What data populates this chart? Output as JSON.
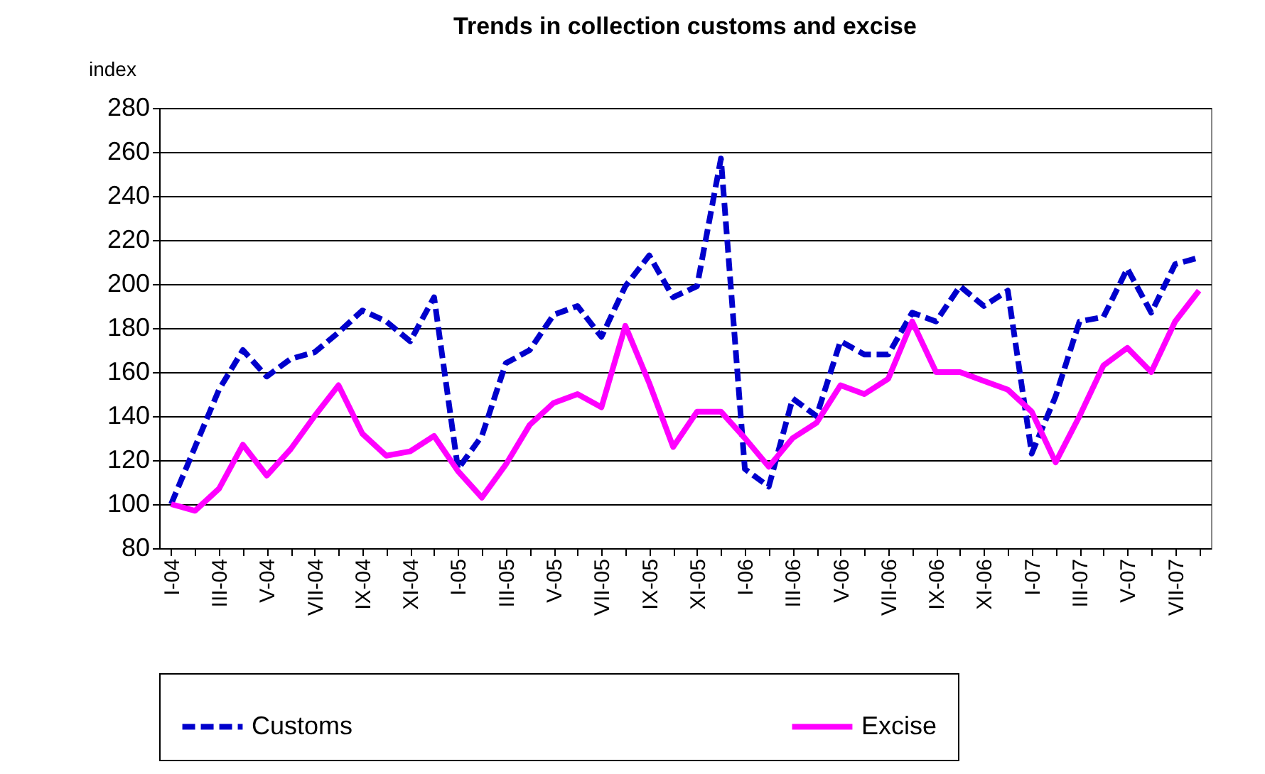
{
  "chart_data": {
    "type": "line",
    "title": "Trends in collection customs and excise",
    "ylabel": "index",
    "categories": [
      "I-04",
      null,
      "III-04",
      null,
      "V-04",
      null,
      "VII-04",
      null,
      "IX-04",
      null,
      "XI-04",
      null,
      "I-05",
      null,
      "III-05",
      null,
      "V-05",
      null,
      "VII-05",
      null,
      "IX-05",
      null,
      "XI-05",
      null,
      "I-06",
      null,
      "III-06",
      null,
      "V-06",
      null,
      "VII-06",
      null,
      "IX-06",
      null,
      "XI-06",
      null,
      "I-07",
      null,
      "III-07",
      null,
      "V-07",
      null,
      "VII-07",
      null
    ],
    "series": [
      {
        "name": "Customs",
        "color": "#0000cc",
        "line_style": "dashed",
        "values": [
          100,
          126,
          152,
          170,
          158,
          166,
          169,
          178,
          188,
          183,
          174,
          194,
          116,
          131,
          164,
          170,
          186,
          190,
          176,
          199,
          213,
          194,
          199,
          257,
          116,
          108,
          148,
          140,
          174,
          168,
          168,
          187,
          183,
          199,
          190,
          197,
          123,
          149,
          183,
          185,
          207,
          187,
          209,
          212
        ]
      },
      {
        "name": "Excise",
        "color": "#ff00ff",
        "line_style": "solid",
        "values": [
          100,
          97,
          107,
          127,
          113,
          125,
          140,
          154,
          132,
          122,
          124,
          131,
          115,
          103,
          118,
          136,
          146,
          150,
          144,
          181,
          155,
          126,
          142,
          142,
          130,
          117,
          130,
          137,
          154,
          150,
          157,
          183,
          160,
          160,
          156,
          152,
          142,
          119,
          140,
          163,
          171,
          160,
          183,
          197
        ]
      }
    ],
    "ylim": [
      80,
      280
    ],
    "yticks": [
      80,
      100,
      120,
      140,
      160,
      180,
      200,
      220,
      240,
      260,
      280
    ],
    "grid": "y",
    "legend": "bottom"
  }
}
